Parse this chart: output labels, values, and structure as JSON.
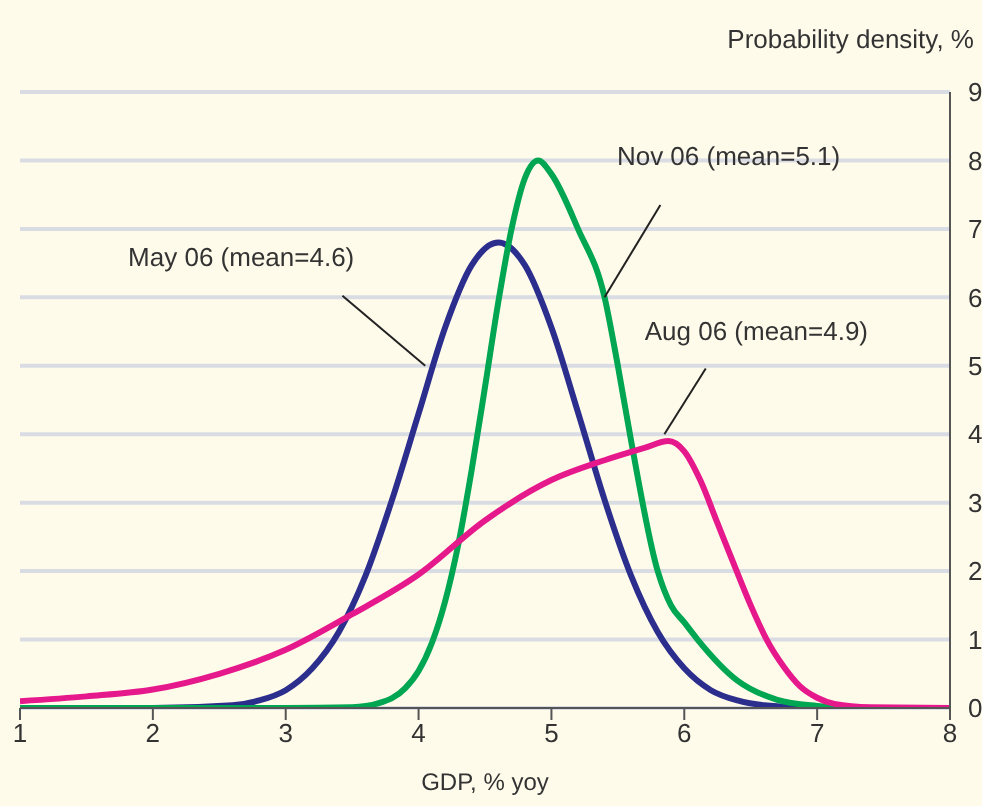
{
  "chart_data": {
    "type": "line",
    "xlabel": "GDP, % yoy",
    "ylabel": "Probability density, %",
    "xlim": [
      1,
      8
    ],
    "xticks": [
      1,
      2,
      3,
      4,
      5,
      6,
      7,
      8
    ],
    "ylim": [
      0,
      9
    ],
    "yticks": [
      0,
      1,
      2,
      3,
      4,
      5,
      6,
      7,
      8,
      9
    ],
    "grid": "y",
    "marker": "none",
    "line_style": "solid",
    "series": [
      {
        "color": "#2b2e8c",
        "x": [
          1,
          2,
          2.6,
          2.8,
          3,
          3.2,
          3.4,
          3.6,
          3.8,
          4,
          4.2,
          4.4,
          4.6,
          4.8,
          5,
          5.2,
          5.4,
          5.6,
          5.8,
          6,
          6.2,
          6.4,
          6.6,
          7,
          8
        ],
        "values": [
          0,
          0,
          0.04,
          0.11,
          0.26,
          0.58,
          1.11,
          1.93,
          3.04,
          4.3,
          5.56,
          6.47,
          6.8,
          6.47,
          5.56,
          4.32,
          3.04,
          1.93,
          1.11,
          0.58,
          0.26,
          0.11,
          0.04,
          0,
          0
        ]
      },
      {
        "color": "#00a651",
        "x": [
          1,
          3,
          3.5,
          3.7,
          3.9,
          4,
          4.1,
          4.2,
          4.3,
          4.4,
          4.5,
          4.6,
          4.7,
          4.8,
          4.9,
          5,
          5.2,
          5.4,
          5.5,
          5.6,
          5.8,
          5.9,
          6,
          6.1,
          6.4,
          6.7,
          7,
          7.3,
          8
        ],
        "values": [
          0,
          0,
          0.01,
          0.07,
          0.29,
          0.54,
          0.95,
          1.56,
          2.4,
          3.48,
          4.69,
          5.93,
          7,
          7.74,
          8,
          7.8,
          7,
          6,
          5,
          3.9,
          2,
          1.5,
          1.25,
          1,
          0.4,
          0.12,
          0.03,
          0,
          0
        ]
      },
      {
        "color": "#e6198c",
        "x": [
          1,
          1.5,
          2,
          2.5,
          3,
          3.5,
          4,
          4.5,
          5,
          5.4,
          5.7,
          5.88,
          6,
          6.12,
          6.25,
          6.38,
          6.5,
          6.62,
          6.75,
          6.87,
          7,
          7.13,
          7.4,
          8
        ],
        "values": [
          0.1,
          0.17,
          0.27,
          0.5,
          0.85,
          1.37,
          1.95,
          2.74,
          3.33,
          3.62,
          3.8,
          3.9,
          3.75,
          3.33,
          2.7,
          2.07,
          1.5,
          1,
          0.6,
          0.32,
          0.15,
          0.06,
          0.01,
          0
        ]
      }
    ],
    "annotations": [
      {
        "text": "May 06 (mean=4.6)",
        "x": 4.05,
        "y": 5.0
      },
      {
        "text": "Nov 06 (mean=5.1)",
        "x": 5.4,
        "y": 6.0
      },
      {
        "text": "Aug 06 (mean=4.9)",
        "x": 5.85,
        "y": 4.0
      }
    ]
  }
}
